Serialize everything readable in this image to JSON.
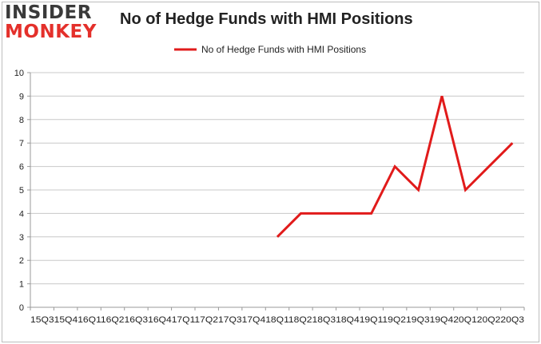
{
  "logo": {
    "line1": "INSIDER",
    "line2": "MONKEY"
  },
  "colors": {
    "series": "#e11b1b",
    "grid": "#c8c8c8",
    "axis": "#999999"
  },
  "chart_data": {
    "type": "line",
    "title": "No of Hedge Funds with HMI Positions",
    "xlabel": "",
    "ylabel": "",
    "ylim": [
      0,
      10
    ],
    "yticks": [
      0,
      1,
      2,
      3,
      4,
      5,
      6,
      7,
      8,
      9,
      10
    ],
    "grid": true,
    "legend": "top-center",
    "x_tick_text": "15Q315Q416Q116Q216Q316Q417Q117Q217Q317Q418Q118Q218Q318Q419Q119Q219Q319Q420Q120Q220Q3",
    "categories": [
      "15Q3",
      "15Q4",
      "16Q1",
      "16Q2",
      "16Q3",
      "16Q4",
      "17Q1",
      "17Q2",
      "17Q3",
      "17Q4",
      "18Q1",
      "18Q2",
      "18Q3",
      "18Q4",
      "19Q1",
      "19Q2",
      "19Q3",
      "19Q4",
      "20Q1",
      "20Q2",
      "20Q3"
    ],
    "series": [
      {
        "name": "No of Hedge Funds with HMI Positions",
        "values": [
          null,
          null,
          null,
          null,
          null,
          null,
          null,
          null,
          null,
          null,
          3,
          4,
          4,
          4,
          4,
          6,
          5,
          9,
          5,
          6,
          7
        ]
      }
    ]
  }
}
